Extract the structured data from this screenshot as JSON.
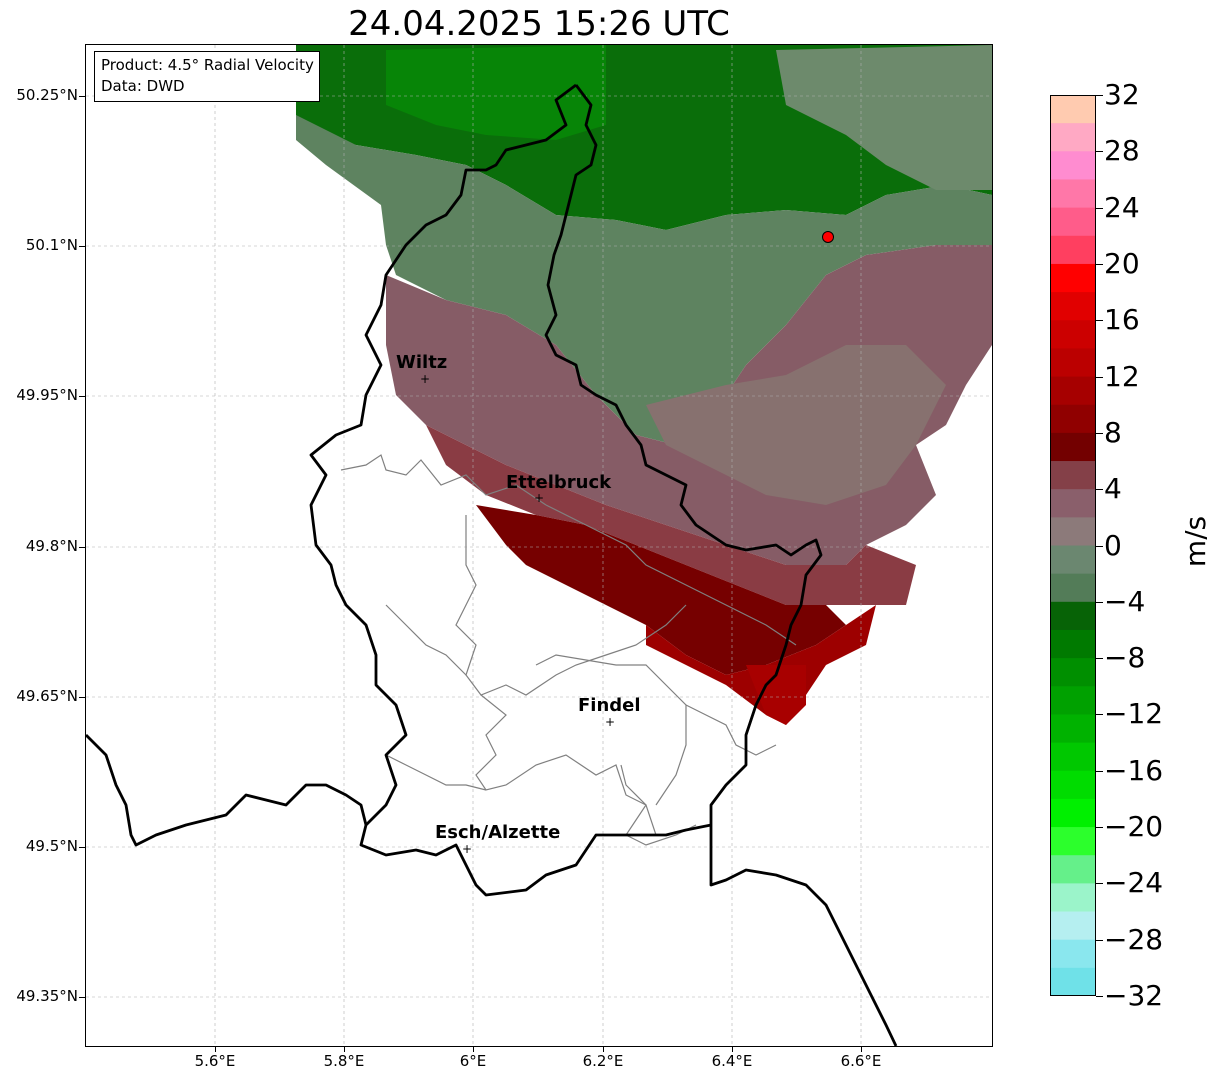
{
  "title": "24.04.2025 15:26 UTC",
  "info_box": {
    "product": "Product: 4.5° Radial Velocity",
    "source": "Data: DWD"
  },
  "map": {
    "lon_range": [
      5.41,
      6.81
    ],
    "lat_range": [
      49.3,
      50.3
    ],
    "lat_ticks": [
      "50.25°N",
      "50.1°N",
      "49.95°N",
      "49.8°N",
      "49.65°N",
      "49.5°N",
      "49.35°N"
    ],
    "lon_ticks": [
      "5.6°E",
      "5.8°E",
      "6°E",
      "6.2°E",
      "6.4°E",
      "6.6°E"
    ],
    "grid": true,
    "cities": [
      {
        "name": "Wiltz",
        "lon": 5.93,
        "lat": 49.967
      },
      {
        "name": "Ettelbruck",
        "lon": 6.1,
        "lat": 49.847
      },
      {
        "name": "Findel",
        "lon": 6.21,
        "lat": 49.626
      },
      {
        "name": "Esch/Alzette",
        "lon": 5.99,
        "lat": 49.498
      }
    ],
    "radar_site": {
      "lon": 6.548,
      "lat": 50.11,
      "color": "#ff0000"
    }
  },
  "colorbar": {
    "label": "m/s",
    "ticks": [
      "32",
      "28",
      "24",
      "20",
      "16",
      "12",
      "8",
      "4",
      "0",
      "−4",
      "−8",
      "−12",
      "−16",
      "−20",
      "−24",
      "−28",
      "−32"
    ],
    "colors_top_to_bottom": [
      "#ffcbb0",
      "#ffa9c4",
      "#ff8cd0",
      "#ff77a8",
      "#ff5c8a",
      "#ff3f60",
      "#ff0000",
      "#e10000",
      "#cc0000",
      "#bb0000",
      "#a60000",
      "#900000",
      "#730000",
      "#844048",
      "#8a5f6b",
      "#8c7a7a",
      "#6b8770",
      "#537c58",
      "#076306",
      "#007a00",
      "#008f00",
      "#00a100",
      "#00b200",
      "#00c800",
      "#00dc00",
      "#00f000",
      "#2cff2c",
      "#65f08a",
      "#9bf4ca",
      "#b5eff0",
      "#8ae7ee",
      "#6fe1e8"
    ]
  }
}
